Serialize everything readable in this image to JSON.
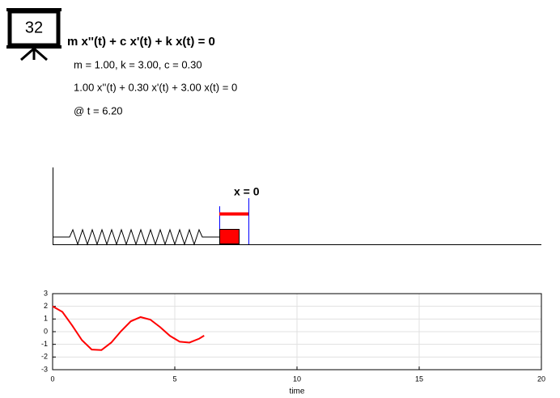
{
  "icon_label": "32",
  "equation": "m x''(t) + c x'(t) + k x(t) = 0",
  "params": "m = 1.00, k = 3.00, c = 0.30",
  "equation_numeric": "1.00 x''(t) + 0.30 x'(t) + 3.00 x(t) = 0",
  "time_label": "@ t = 6.20",
  "marker_label": "x = 0",
  "chart_data": {
    "type": "line",
    "x_label": "time",
    "xlim": [
      0,
      20
    ],
    "ylim": [
      -3,
      3
    ],
    "xticks": [
      0,
      5,
      10,
      15,
      20
    ],
    "yticks": [
      -3,
      -2,
      -1,
      0,
      1,
      2,
      3
    ],
    "grid": true,
    "series": [
      {
        "color": "#ff0000",
        "x": [
          0,
          0.4,
          0.8,
          1.2,
          1.6,
          2.0,
          2.4,
          2.8,
          3.2,
          3.6,
          4.0,
          4.4,
          4.8,
          5.2,
          5.6,
          6.0,
          6.2
        ],
        "values": [
          2.0,
          1.56,
          0.49,
          -0.67,
          -1.41,
          -1.45,
          -0.86,
          0.04,
          0.82,
          1.15,
          0.95,
          0.36,
          -0.33,
          -0.79,
          -0.86,
          -0.55,
          -0.31
        ]
      }
    ]
  }
}
